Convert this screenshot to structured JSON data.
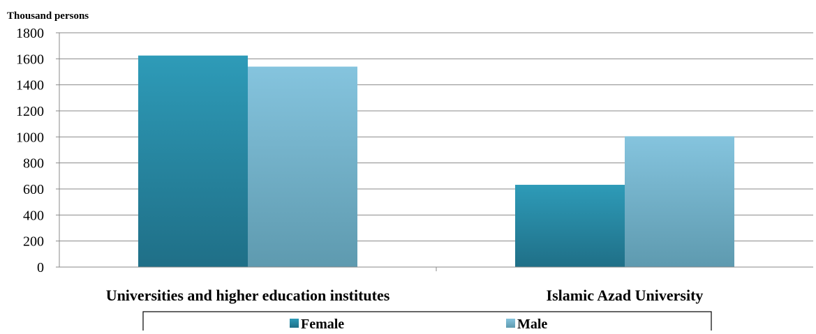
{
  "chart_data": {
    "type": "bar",
    "title": "",
    "ylabel": "Thousand persons",
    "xlabel": "",
    "categories": [
      "Universities and higher education institutes",
      "Islamic Azad University"
    ],
    "series": [
      {
        "name": "Female",
        "values": [
          1625,
          632
        ],
        "color": "#2e9bb8",
        "color_dark": "#1f6f87"
      },
      {
        "name": "Male",
        "values": [
          1540,
          1005
        ],
        "color": "#85c4de",
        "color_dark": "#5e9aaf"
      }
    ],
    "ylim": [
      0,
      1800
    ],
    "yticks": [
      "0",
      "200",
      "400",
      "600",
      "800",
      "1000",
      "1200",
      "1400",
      "1600",
      "1800"
    ],
    "grid": true,
    "legend_position": "bottom"
  }
}
